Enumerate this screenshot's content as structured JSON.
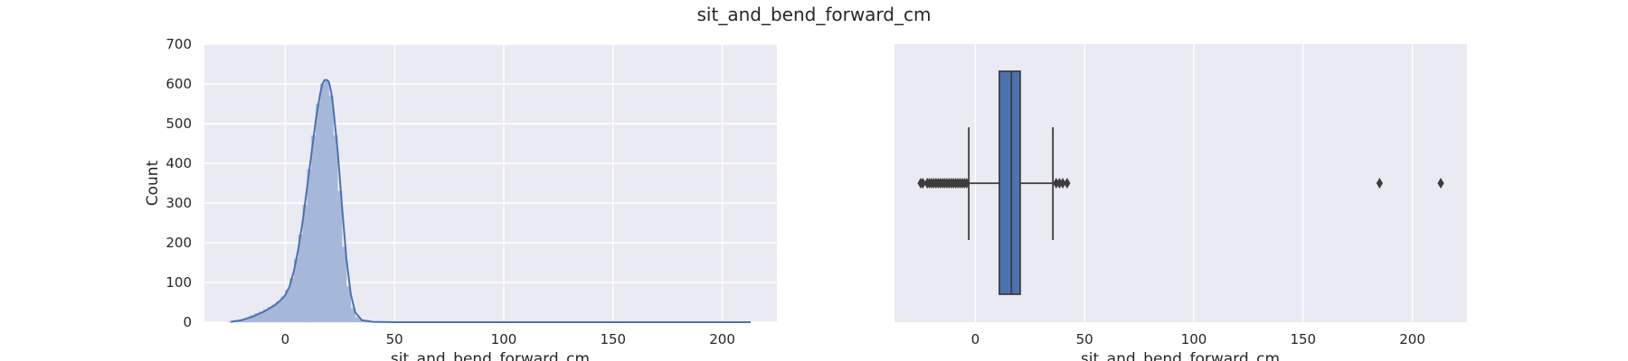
{
  "figure": {
    "suptitle": "sit_and_bend_forward_cm"
  },
  "chart_data": [
    {
      "type": "histogram",
      "subtype": "histogram-with-kde",
      "title": "",
      "xlabel": "sit_and_bend_forward_cm",
      "ylabel": "Count",
      "xlim": [
        -37,
        225
      ],
      "ylim": [
        0,
        700
      ],
      "xticks": [
        0,
        50,
        100,
        150,
        200
      ],
      "yticks": [
        0,
        100,
        200,
        300,
        400,
        500,
        600,
        700
      ],
      "grid": true,
      "background": "#eaeaf2",
      "bar_color": "#a6b8d9",
      "line_color": "#4c72b0",
      "bins": [
        {
          "x": -25,
          "count": 1
        },
        {
          "x": -23,
          "count": 2
        },
        {
          "x": -21,
          "count": 4
        },
        {
          "x": -19,
          "count": 8
        },
        {
          "x": -17,
          "count": 12
        },
        {
          "x": -15,
          "count": 17
        },
        {
          "x": -13,
          "count": 22
        },
        {
          "x": -11,
          "count": 26
        },
        {
          "x": -9,
          "count": 32
        },
        {
          "x": -7,
          "count": 38
        },
        {
          "x": -5,
          "count": 44
        },
        {
          "x": -3,
          "count": 52
        },
        {
          "x": -1,
          "count": 64
        },
        {
          "x": 1,
          "count": 82
        },
        {
          "x": 3,
          "count": 110
        },
        {
          "x": 5,
          "count": 160
        },
        {
          "x": 7,
          "count": 220
        },
        {
          "x": 9,
          "count": 295
        },
        {
          "x": 11,
          "count": 385
        },
        {
          "x": 13,
          "count": 470
        },
        {
          "x": 15,
          "count": 550
        },
        {
          "x": 17,
          "count": 600
        },
        {
          "x": 19,
          "count": 610
        },
        {
          "x": 21,
          "count": 570
        },
        {
          "x": 23,
          "count": 470
        },
        {
          "x": 25,
          "count": 330
        },
        {
          "x": 27,
          "count": 190
        },
        {
          "x": 29,
          "count": 90
        },
        {
          "x": 31,
          "count": 35
        },
        {
          "x": 33,
          "count": 12
        },
        {
          "x": 35,
          "count": 4
        },
        {
          "x": 37,
          "count": 2
        },
        {
          "x": 39,
          "count": 1
        },
        {
          "x": 41,
          "count": 1
        }
      ],
      "kde": [
        [
          -25,
          1
        ],
        [
          -20,
          5
        ],
        [
          -15,
          14
        ],
        [
          -10,
          26
        ],
        [
          -5,
          42
        ],
        [
          -2,
          56
        ],
        [
          0,
          68
        ],
        [
          2,
          90
        ],
        [
          4,
          130
        ],
        [
          6,
          185
        ],
        [
          8,
          255
        ],
        [
          10,
          340
        ],
        [
          12,
          425
        ],
        [
          14,
          510
        ],
        [
          16,
          575
        ],
        [
          17,
          600
        ],
        [
          18,
          610
        ],
        [
          19,
          610
        ],
        [
          20,
          605
        ],
        [
          21,
          580
        ],
        [
          22,
          540
        ],
        [
          24,
          430
        ],
        [
          26,
          290
        ],
        [
          28,
          160
        ],
        [
          30,
          70
        ],
        [
          32,
          25
        ],
        [
          35,
          5
        ],
        [
          40,
          1
        ],
        [
          50,
          0
        ],
        [
          100,
          0
        ],
        [
          150,
          0
        ],
        [
          213,
          0
        ]
      ]
    },
    {
      "type": "box",
      "title": "",
      "xlabel": "sit_and_bend_forward_cm",
      "xlim": [
        -37,
        225
      ],
      "xticks": [
        0,
        50,
        100,
        150,
        200
      ],
      "grid": true,
      "background": "#eaeaf2",
      "box_color": "#4c72b0",
      "line_color": "#3d3d3d",
      "q1": 11,
      "median": 16.5,
      "q3": 20.5,
      "whisker_low": -3,
      "whisker_high": 35.5,
      "outliers": [
        -25,
        -24,
        -22,
        -21,
        -20,
        -19,
        -18,
        -17,
        -16,
        -15,
        -14,
        -13,
        -12,
        -11,
        -10,
        -9,
        -8,
        -7,
        -6,
        -5,
        -4,
        37,
        38.5,
        40,
        42,
        185,
        213
      ]
    }
  ]
}
